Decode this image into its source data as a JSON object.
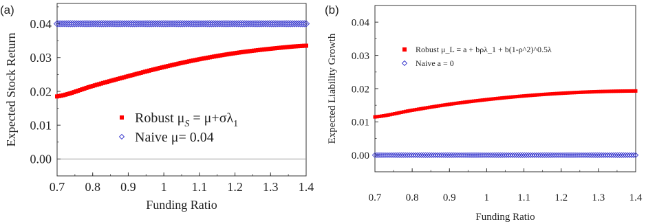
{
  "chart_data": [
    {
      "type": "scatter",
      "panel_label": "(a)",
      "xlabel": "Funding Ratio",
      "ylabel": "Expected Stock Return",
      "xlim": [
        0.7,
        1.4
      ],
      "ylim": [
        -0.005,
        0.046
      ],
      "x_ticks": [
        0.7,
        0.8,
        0.9,
        1.0,
        1.1,
        1.2,
        1.3,
        1.4
      ],
      "x_tick_labels": [
        "0.7",
        "0.8",
        "0.9",
        "1",
        "1.1",
        "1.2",
        "1.3",
        "1.4"
      ],
      "y_ticks": [
        0.0,
        0.01,
        0.02,
        0.03,
        0.04
      ],
      "y_tick_labels": [
        "0.00",
        "0.01",
        "0.02",
        "0.03",
        "0.04"
      ],
      "reference_line_y": 0.0,
      "legend_position": "lower-right",
      "x": [
        0.7,
        0.8,
        0.9,
        1.0,
        1.1,
        1.2,
        1.3,
        1.4
      ],
      "series": [
        {
          "name": "Robust μS = μ+σλ1",
          "legend": {
            "main": "Robust μ",
            "sub": "S",
            "after": " = μ+σλ",
            "sub2": "1"
          },
          "marker": "filled-square",
          "color": "#ff0000",
          "values": [
            0.0185,
            0.0216,
            0.0245,
            0.0272,
            0.0295,
            0.0313,
            0.0326,
            0.0335
          ]
        },
        {
          "name": "Naive μ= 0.04",
          "legend": {
            "main": "Naive μ= 0.04"
          },
          "marker": "open-diamond",
          "color": "#3333cc",
          "values": [
            0.04,
            0.04,
            0.04,
            0.04,
            0.04,
            0.04,
            0.04,
            0.04
          ]
        }
      ]
    },
    {
      "type": "scatter",
      "panel_label": "(b)",
      "xlabel": "Funding Ratio",
      "ylabel": "Expected Liability Growth",
      "xlim": [
        0.7,
        1.4
      ],
      "ylim": [
        -0.005,
        0.045
      ],
      "x_ticks": [
        0.7,
        0.8,
        0.9,
        1.0,
        1.1,
        1.2,
        1.3,
        1.4
      ],
      "x_tick_labels": [
        "0.7",
        "0.8",
        "0.9",
        "1",
        "1.1",
        "1.2",
        "1.3",
        "1.4"
      ],
      "y_ticks": [
        0.0,
        0.01,
        0.02,
        0.03,
        0.04
      ],
      "y_tick_labels": [
        "0.00",
        "0.01",
        "0.02",
        "0.03",
        "0.04"
      ],
      "legend_position": "top-center",
      "x": [
        0.7,
        0.8,
        0.9,
        1.0,
        1.1,
        1.2,
        1.3,
        1.4
      ],
      "series": [
        {
          "name": "Robust μ_L = a + bρλ_1 + b(1-ρ^2)^0.5λ",
          "legend": {
            "main": "Robust μ_L = a + bρλ_1 + b(1-ρ^2)^0.5λ"
          },
          "marker": "filled-square",
          "color": "#ff0000",
          "values": [
            0.0115,
            0.0135,
            0.0153,
            0.0167,
            0.0178,
            0.0186,
            0.0191,
            0.0193
          ]
        },
        {
          "name": "Naive a = 0",
          "legend": {
            "main": "Naive  a = 0"
          },
          "marker": "open-diamond",
          "color": "#3333cc",
          "values": [
            0.0,
            0.0,
            0.0,
            0.0,
            0.0,
            0.0,
            0.0,
            0.0
          ]
        }
      ]
    }
  ]
}
